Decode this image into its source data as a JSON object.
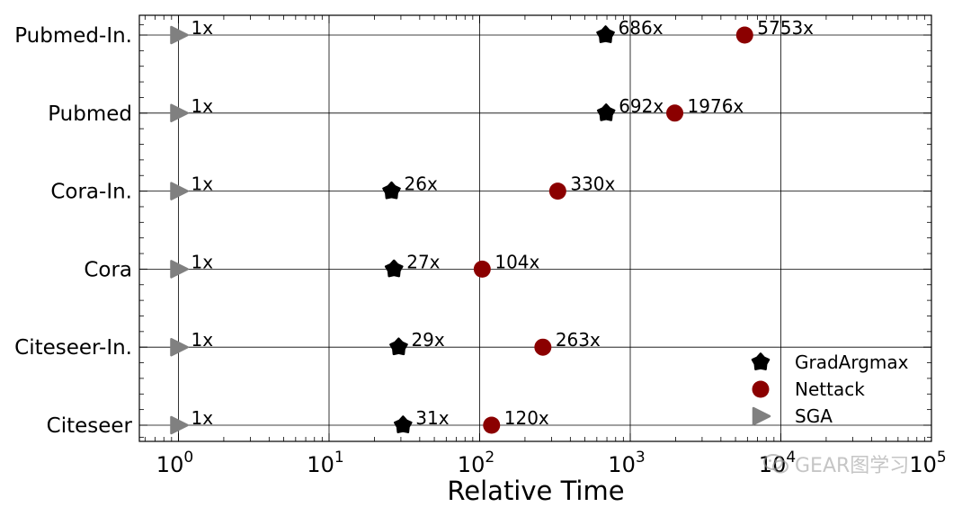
{
  "chart_data": {
    "type": "scatter",
    "xscale": "log",
    "xlim": [
      0.55,
      100000
    ],
    "xlabel": "Relative Time",
    "ylabel": "",
    "title": "",
    "grid": true,
    "legend_position": "lower-right",
    "x_ticks": [
      {
        "value": 1,
        "base": "10",
        "exp": "0"
      },
      {
        "value": 10,
        "base": "10",
        "exp": "1"
      },
      {
        "value": 100,
        "base": "10",
        "exp": "2"
      },
      {
        "value": 1000,
        "base": "10",
        "exp": "3"
      },
      {
        "value": 10000,
        "base": "10",
        "exp": "4"
      },
      {
        "value": 100000,
        "base": "10",
        "exp": "5"
      }
    ],
    "categories": [
      "Pubmed-In.",
      "Pubmed",
      "Cora-In.",
      "Cora",
      "Citeseer-In.",
      "Citeseer"
    ],
    "series": [
      {
        "name": "GradArgmax",
        "marker": "star",
        "color": "#000000",
        "values": [
          686,
          692,
          26,
          27,
          29,
          31
        ],
        "labels": [
          "686x",
          "692x",
          "26x",
          "27x",
          "29x",
          "31x"
        ]
      },
      {
        "name": "Nettack",
        "marker": "circle",
        "color": "#8b0000",
        "values": [
          5753,
          1976,
          330,
          104,
          263,
          120
        ],
        "labels": [
          "5753x",
          "1976x",
          "330x",
          "104x",
          "263x",
          "120x"
        ]
      },
      {
        "name": "SGA",
        "marker": "triangle-right",
        "color": "#808080",
        "values": [
          1,
          1,
          1,
          1,
          1,
          1
        ],
        "labels": [
          "1x",
          "1x",
          "1x",
          "1x",
          "1x",
          "1x"
        ]
      }
    ]
  },
  "watermark": {
    "text": "GEAR图学习",
    "icon": "wechat-icon"
  }
}
